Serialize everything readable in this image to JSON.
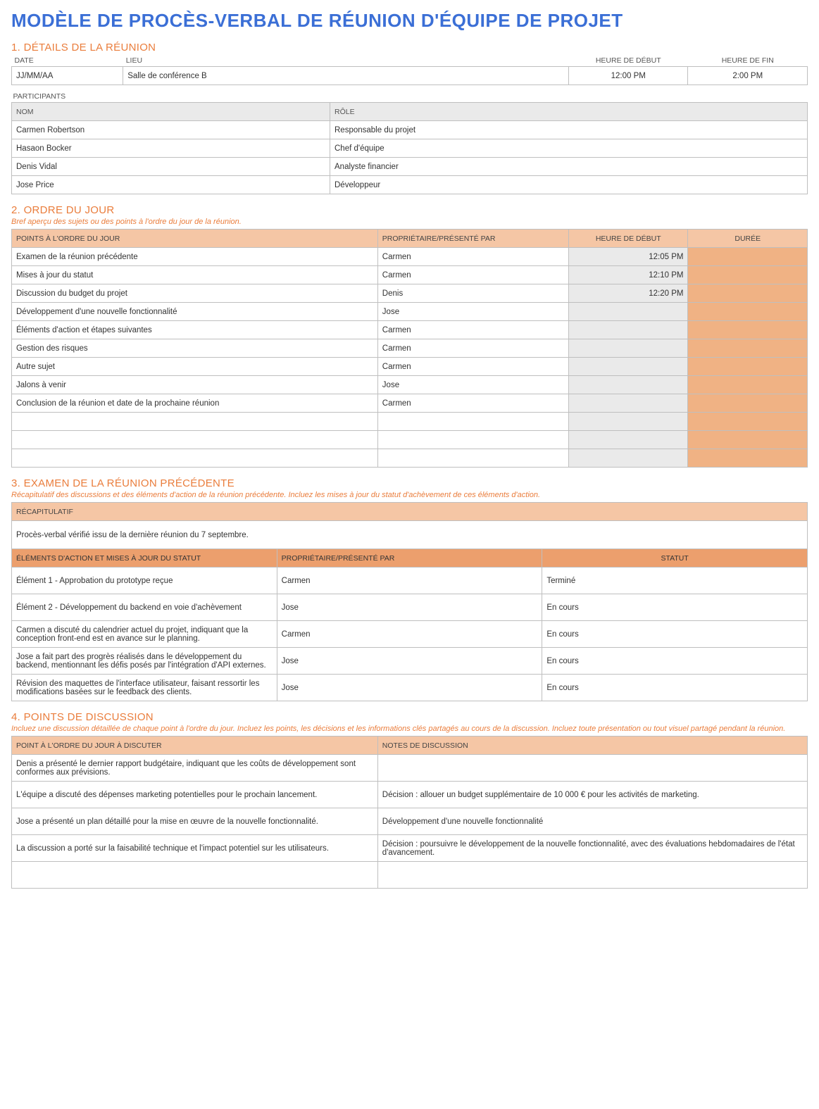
{
  "title": "MODÈLE DE PROCÈS-VERBAL DE RÉUNION D'ÉQUIPE DE PROJET",
  "colors": {
    "title": "#3b6fd6",
    "accent": "#ea7d3c",
    "hdr_gray": "#eaeaea",
    "hdr_orange": "#f5c6a5",
    "hdr_orange_dark": "#ec9f6d",
    "cell_orange": "#f0b284",
    "border": "#bfbfbf"
  },
  "s1": {
    "heading": "1. DÉTAILS DE LA RÉUNION",
    "cols": {
      "date": "DATE",
      "lieu": "LIEU",
      "start": "HEURE DE DÉBUT",
      "end": "HEURE DE FIN"
    },
    "row": {
      "date": "JJ/MM/AA",
      "lieu": "Salle de conférence B",
      "start": "12:00 PM",
      "end": "2:00 PM"
    },
    "participants_label": "PARTICIPANTS",
    "pcol": {
      "name": "NOM",
      "role": "RÔLE"
    },
    "participants": [
      {
        "n": "Carmen Robertson",
        "r": "Responsable du projet"
      },
      {
        "n": "Hasaon Bocker",
        "r": "Chef d'équipe"
      },
      {
        "n": "Denis Vidal",
        "r": "Analyste financier"
      },
      {
        "n": "Jose Price",
        "r": "Développeur"
      }
    ]
  },
  "s2": {
    "heading": "2. ORDRE DU JOUR",
    "sub": "Bref aperçu des sujets ou des points à l'ordre du jour de la réunion.",
    "cols": {
      "item": "POINTS À L'ORDRE DU JOUR",
      "owner": "PROPRIÉTAIRE/PRÉSENTÉ PAR",
      "start": "HEURE DE DÉBUT",
      "dur": "DURÉE"
    },
    "rows": [
      {
        "i": "Examen de la réunion précédente",
        "o": "Carmen",
        "s": "12:05 PM"
      },
      {
        "i": "Mises à jour du statut",
        "o": "Carmen",
        "s": "12:10 PM"
      },
      {
        "i": "Discussion du budget du projet",
        "o": "Denis",
        "s": "12:20 PM"
      },
      {
        "i": "Développement d'une nouvelle fonctionnalité",
        "o": "Jose",
        "s": ""
      },
      {
        "i": "Éléments d'action et étapes suivantes",
        "o": "Carmen",
        "s": ""
      },
      {
        "i": "Gestion des risques",
        "o": "Carmen",
        "s": ""
      },
      {
        "i": "Autre sujet",
        "o": "Carmen",
        "s": ""
      },
      {
        "i": "Jalons à venir",
        "o": "Jose",
        "s": ""
      },
      {
        "i": "Conclusion de la réunion et date de la prochaine réunion",
        "o": "Carmen",
        "s": ""
      },
      {
        "i": "",
        "o": "",
        "s": ""
      },
      {
        "i": "",
        "o": "",
        "s": ""
      },
      {
        "i": "",
        "o": "",
        "s": ""
      }
    ]
  },
  "s3": {
    "heading": "3. EXAMEN DE LA RÉUNION PRÉCÉDENTE",
    "sub": "Récapitulatif des discussions et des éléments d'action de la réunion précédente. Incluez les mises à jour du statut d'achèvement de ces éléments d'action.",
    "recap_hdr": "RÉCAPITULATIF",
    "recap": "Procès-verbal vérifié issu de la dernière réunion du 7 septembre.",
    "cols": {
      "item": "ÉLÉMENTS D'ACTION ET MISES À JOUR DU STATUT",
      "owner": "PROPRIÉTAIRE/PRÉSENTÉ PAR",
      "status": "STATUT"
    },
    "rows": [
      {
        "i": "Élément 1 - Approbation du prototype reçue",
        "o": "Carmen",
        "s": "Terminé"
      },
      {
        "i": "Élément 2 - Développement du backend en voie d'achèvement",
        "o": "Jose",
        "s": "En cours"
      },
      {
        "i": "Carmen a discuté du calendrier actuel du projet, indiquant que la conception front-end est en avance sur le planning.",
        "o": "Carmen",
        "s": "En cours"
      },
      {
        "i": "Jose a fait part des progrès réalisés dans le développement du backend, mentionnant les défis posés par l'intégration d'API externes.",
        "o": "Jose",
        "s": "En cours"
      },
      {
        "i": "Révision des maquettes de l'interface utilisateur, faisant ressortir les modifications basées sur le feedback des clients.",
        "o": "Jose",
        "s": "En cours"
      }
    ]
  },
  "s4": {
    "heading": "4. POINTS DE DISCUSSION",
    "sub": "Incluez une discussion détaillée de chaque point à l'ordre du jour. Incluez les points, les décisions et les informations clés partagés au cours de la discussion. Incluez toute présentation ou tout visuel partagé pendant la réunion.",
    "cols": {
      "item": "POINT À L'ORDRE DU JOUR À DISCUTER",
      "notes": "NOTES DE DISCUSSION"
    },
    "rows": [
      {
        "i": "Denis a présenté le dernier rapport budgétaire, indiquant que les coûts de développement sont conformes aux prévisions.",
        "n": ""
      },
      {
        "i": "L'équipe a discuté des dépenses marketing potentielles pour le prochain lancement.",
        "n": "Décision : allouer un budget supplémentaire de 10 000 € pour les activités de marketing."
      },
      {
        "i": "Jose a présenté un plan détaillé pour la mise en œuvre de la nouvelle fonctionnalité.",
        "n": "Développement d'une nouvelle fonctionnalité"
      },
      {
        "i": "La discussion a porté sur la faisabilité technique et l'impact potentiel sur les utilisateurs.",
        "n": "Décision : poursuivre le développement de la nouvelle fonctionnalité, avec des évaluations hebdomadaires de l'état d'avancement."
      },
      {
        "i": "",
        "n": ""
      }
    ]
  }
}
